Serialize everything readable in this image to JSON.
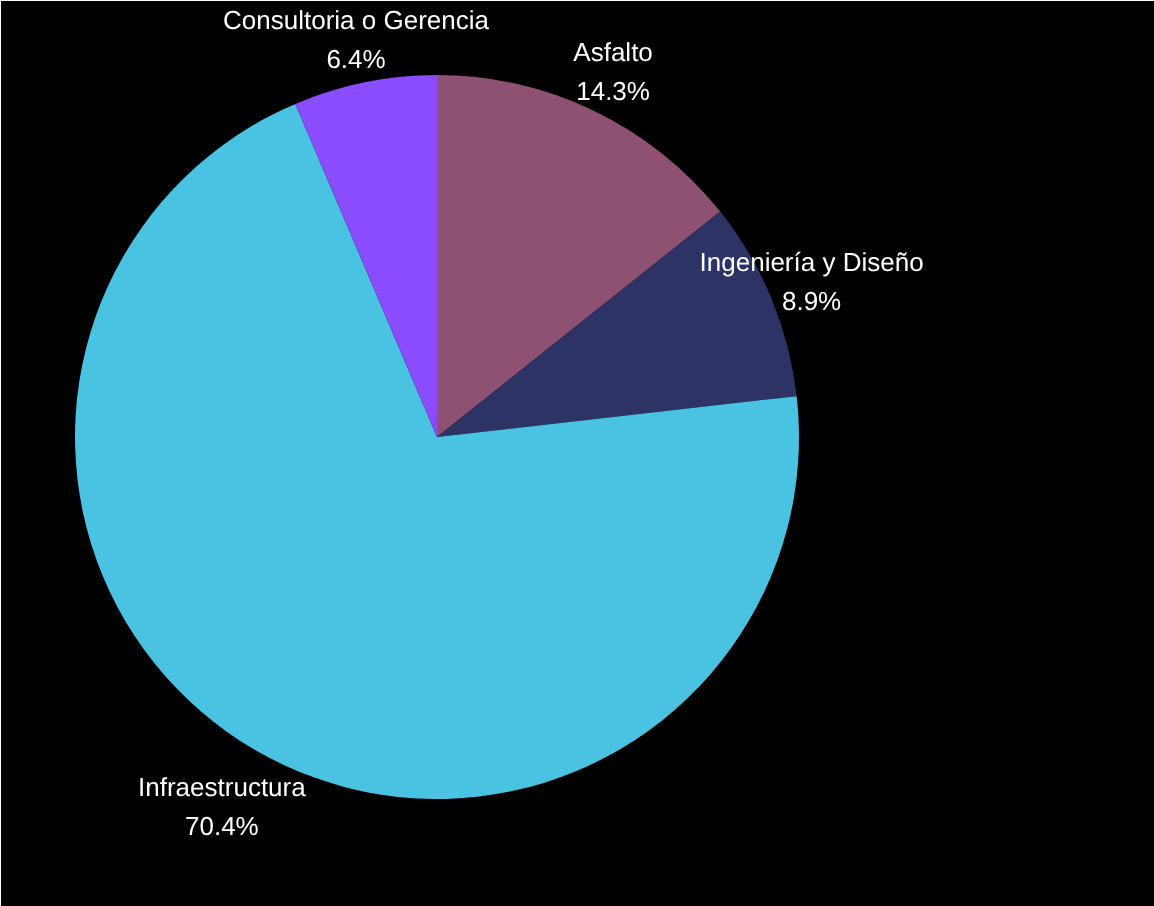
{
  "chart_data": {
    "type": "pie",
    "categories": [
      "Asfalto",
      "Ingeniería y Diseño",
      "Infraestructura",
      "Consultoria o Gerencia"
    ],
    "values": [
      14.3,
      8.9,
      70.4,
      6.4
    ],
    "value_labels": [
      "14.3%",
      "8.9%",
      "70.4%",
      "6.4%"
    ],
    "colors": [
      "#8f5172",
      "#2e3366",
      "#4ac2e2",
      "#8a4cff"
    ],
    "legend": false
  }
}
